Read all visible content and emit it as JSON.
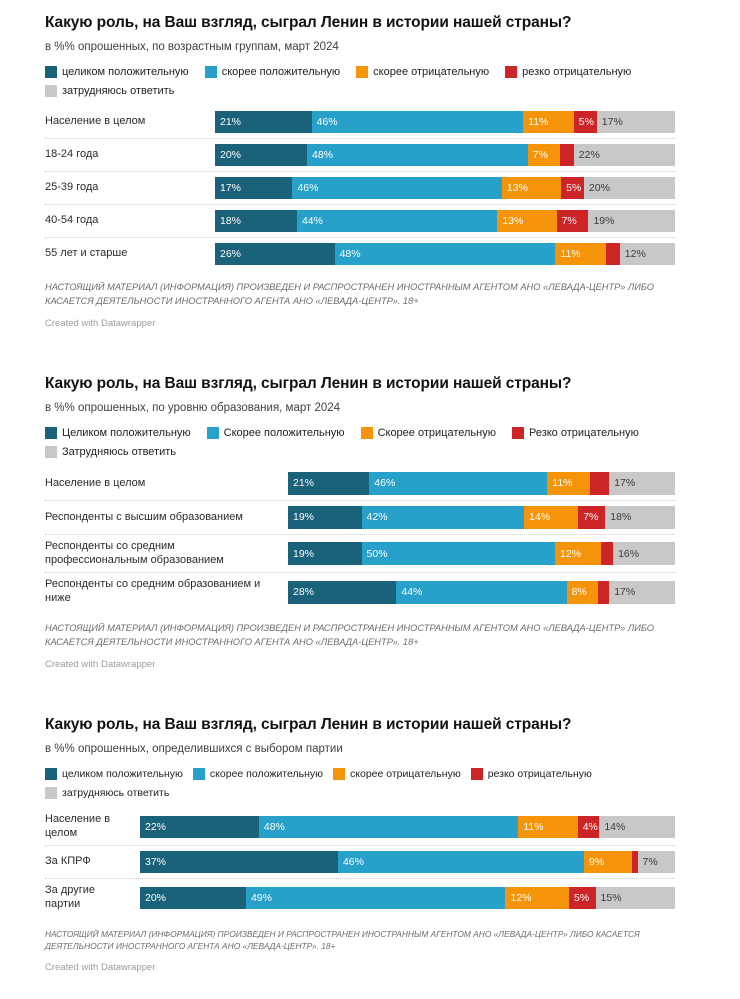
{
  "colors": {
    "fully-positive": "#1a617a",
    "rather-positive": "#27a0ca",
    "rather-negative": "#f59408",
    "sharply-negative": "#cc2427",
    "undecided": "#c8c8c8"
  },
  "chart_data": [
    {
      "type": "bar",
      "stacked": true,
      "orientation": "horizontal",
      "unit": "%",
      "title": "Какую роль, на Ваш взгляд, сыграл Ленин в истории нашей страны?",
      "subtitle": "в %% опрошенных, по возрастным группам, март 2024",
      "legend_position": "top",
      "legend": [
        {
          "key": "fully-positive",
          "label": "целиком положительную"
        },
        {
          "key": "rather-positive",
          "label": "скорее положительную"
        },
        {
          "key": "rather-negative",
          "label": "скорее отрицательную"
        },
        {
          "key": "sharply-negative",
          "label": "резко отрицательную"
        },
        {
          "key": "undecided",
          "label": "затрудняюсь ответить"
        }
      ],
      "rows": [
        {
          "label": "Население в целом",
          "segments": [
            {
              "key": "fully-positive",
              "value": 21,
              "label": "21%"
            },
            {
              "key": "rather-positive",
              "value": 46,
              "label": "46%"
            },
            {
              "key": "rather-negative",
              "value": 11,
              "label": "11%"
            },
            {
              "key": "sharply-negative",
              "value": 5,
              "label": "5%"
            },
            {
              "key": "undecided",
              "value": 17,
              "label": "17%"
            }
          ]
        },
        {
          "label": "18-24 года",
          "segments": [
            {
              "key": "fully-positive",
              "value": 20,
              "label": "20%"
            },
            {
              "key": "rather-positive",
              "value": 48,
              "label": "48%"
            },
            {
              "key": "rather-negative",
              "value": 7,
              "label": "7%"
            },
            {
              "key": "sharply-negative",
              "value": 3,
              "label": ""
            },
            {
              "key": "undecided",
              "value": 22,
              "label": "22%"
            }
          ]
        },
        {
          "label": "25-39 года",
          "segments": [
            {
              "key": "fully-positive",
              "value": 17,
              "label": "17%"
            },
            {
              "key": "rather-positive",
              "value": 46,
              "label": "46%"
            },
            {
              "key": "rather-negative",
              "value": 13,
              "label": "13%"
            },
            {
              "key": "sharply-negative",
              "value": 5,
              "label": "5%"
            },
            {
              "key": "undecided",
              "value": 20,
              "label": "20%"
            }
          ]
        },
        {
          "label": "40-54 года",
          "segments": [
            {
              "key": "fully-positive",
              "value": 18,
              "label": "18%"
            },
            {
              "key": "rather-positive",
              "value": 44,
              "label": "44%"
            },
            {
              "key": "rather-negative",
              "value": 13,
              "label": "13%"
            },
            {
              "key": "sharply-negative",
              "value": 7,
              "label": "7%"
            },
            {
              "key": "undecided",
              "value": 19,
              "label": "19%"
            }
          ]
        },
        {
          "label": "55 лет и старше",
          "segments": [
            {
              "key": "fully-positive",
              "value": 26,
              "label": "26%"
            },
            {
              "key": "rather-positive",
              "value": 48,
              "label": "48%"
            },
            {
              "key": "rather-negative",
              "value": 11,
              "label": "11%"
            },
            {
              "key": "sharply-negative",
              "value": 3,
              "label": ""
            },
            {
              "key": "undecided",
              "value": 12,
              "label": "12%"
            }
          ]
        }
      ],
      "disclaimer": "НАСТОЯЩИЙ МАТЕРИАЛ (ИНФОРМАЦИЯ) ПРОИЗВЕДЕН И РАСПРОСТРАНЕН ИНОСТРАННЫМ АГЕНТОМ АНО «ЛЕВАДА-ЦЕНТР» ЛИБО КАСАЕТСЯ ДЕЯТЕЛЬНОСТИ ИНОСТРАННОГО АГЕНТА АНО «ЛЕВАДА-ЦЕНТР». 18+",
      "credit": "Created with Datawrapper"
    },
    {
      "type": "bar",
      "stacked": true,
      "orientation": "horizontal",
      "unit": "%",
      "title": "Какую роль, на Ваш взгляд, сыграл Ленин в истории нашей страны?",
      "subtitle": "в %% опрошенных, по уровню образования, март 2024",
      "legend_position": "top",
      "legend": [
        {
          "key": "fully-positive",
          "label": "Целиком положительную"
        },
        {
          "key": "rather-positive",
          "label": "Скорее положительную"
        },
        {
          "key": "rather-negative",
          "label": "Скорее отрицательную"
        },
        {
          "key": "sharply-negative",
          "label": "Резко отрицательную"
        },
        {
          "key": "undecided",
          "label": "Затрудняюсь ответить"
        }
      ],
      "rows": [
        {
          "label": "Население в целом",
          "segments": [
            {
              "key": "fully-positive",
              "value": 21,
              "label": "21%"
            },
            {
              "key": "rather-positive",
              "value": 46,
              "label": "46%"
            },
            {
              "key": "rather-negative",
              "value": 11,
              "label": "11%"
            },
            {
              "key": "sharply-negative",
              "value": 5,
              "label": ""
            },
            {
              "key": "undecided",
              "value": 17,
              "label": "17%"
            }
          ]
        },
        {
          "label": "Респонденты с высшим образованием",
          "segments": [
            {
              "key": "fully-positive",
              "value": 19,
              "label": "19%"
            },
            {
              "key": "rather-positive",
              "value": 42,
              "label": "42%"
            },
            {
              "key": "rather-negative",
              "value": 14,
              "label": "14%"
            },
            {
              "key": "sharply-negative",
              "value": 7,
              "label": "7%"
            },
            {
              "key": "undecided",
              "value": 18,
              "label": "18%"
            }
          ]
        },
        {
          "label": "Респонденты со средним профессиональным образованием",
          "segments": [
            {
              "key": "fully-positive",
              "value": 19,
              "label": "19%"
            },
            {
              "key": "rather-positive",
              "value": 50,
              "label": "50%"
            },
            {
              "key": "rather-negative",
              "value": 12,
              "label": "12%"
            },
            {
              "key": "sharply-negative",
              "value": 3,
              "label": ""
            },
            {
              "key": "undecided",
              "value": 16,
              "label": "16%"
            }
          ]
        },
        {
          "label": "Респонденты со средним образованием и ниже",
          "segments": [
            {
              "key": "fully-positive",
              "value": 28,
              "label": "28%"
            },
            {
              "key": "rather-positive",
              "value": 44,
              "label": "44%"
            },
            {
              "key": "rather-negative",
              "value": 8,
              "label": "8%"
            },
            {
              "key": "sharply-negative",
              "value": 3,
              "label": ""
            },
            {
              "key": "undecided",
              "value": 17,
              "label": "17%"
            }
          ]
        }
      ],
      "disclaimer": "НАСТОЯЩИЙ МАТЕРИАЛ (ИНФОРМАЦИЯ) ПРОИЗВЕДЕН И РАСПРОСТРАНЕН ИНОСТРАННЫМ АГЕНТОМ АНО «ЛЕВАДА-ЦЕНТР» ЛИБО КАСАЕТСЯ ДЕЯТЕЛЬНОСТИ ИНОСТРАННОГО АГЕНТА АНО «ЛЕВАДА-ЦЕНТР». 18+",
      "credit": "Created with Datawrapper"
    },
    {
      "type": "bar",
      "stacked": true,
      "orientation": "horizontal",
      "unit": "%",
      "title": "Какую роль, на Ваш взгляд, сыграл Ленин в истории нашей страны?",
      "subtitle": "в %% опрошенных, определившихся с выбором партии",
      "legend_position": "top",
      "legend": [
        {
          "key": "fully-positive",
          "label": "целиком положительную"
        },
        {
          "key": "rather-positive",
          "label": "скорее положительную"
        },
        {
          "key": "rather-negative",
          "label": "скорее отрицательную"
        },
        {
          "key": "sharply-negative",
          "label": "резко отрицательную"
        },
        {
          "key": "undecided",
          "label": "затрудняюсь ответить"
        }
      ],
      "rows": [
        {
          "label": "Население в целом",
          "segments": [
            {
              "key": "fully-positive",
              "value": 22,
              "label": "22%"
            },
            {
              "key": "rather-positive",
              "value": 48,
              "label": "48%"
            },
            {
              "key": "rather-negative",
              "value": 11,
              "label": "11%"
            },
            {
              "key": "sharply-negative",
              "value": 4,
              "label": "4%"
            },
            {
              "key": "undecided",
              "value": 14,
              "label": "14%"
            }
          ]
        },
        {
          "label": "За КПРФ",
          "segments": [
            {
              "key": "fully-positive",
              "value": 37,
              "label": "37%"
            },
            {
              "key": "rather-positive",
              "value": 46,
              "label": "46%"
            },
            {
              "key": "rather-negative",
              "value": 9,
              "label": "9%"
            },
            {
              "key": "sharply-negative",
              "value": 1,
              "label": ""
            },
            {
              "key": "undecided",
              "value": 7,
              "label": "7%"
            }
          ]
        },
        {
          "label": "За другие партии",
          "segments": [
            {
              "key": "fully-positive",
              "value": 20,
              "label": "20%"
            },
            {
              "key": "rather-positive",
              "value": 49,
              "label": "49%"
            },
            {
              "key": "rather-negative",
              "value": 12,
              "label": "12%"
            },
            {
              "key": "sharply-negative",
              "value": 5,
              "label": "5%"
            },
            {
              "key": "undecided",
              "value": 15,
              "label": "15%"
            }
          ]
        }
      ],
      "disclaimer": "НАСТОЯЩИЙ МАТЕРИАЛ (ИНФОРМАЦИЯ) ПРОИЗВЕДЕН И РАСПРОСТРАНЕН ИНОСТРАННЫМ АГЕНТОМ АНО «ЛЕВАДА-ЦЕНТР» ЛИБО КАСАЕТСЯ ДЕЯТЕЛЬНОСТИ ИНОСТРАННОГО АГЕНТА АНО «ЛЕВАДА-ЦЕНТР». 18+",
      "credit": "Created with Datawrapper"
    }
  ]
}
